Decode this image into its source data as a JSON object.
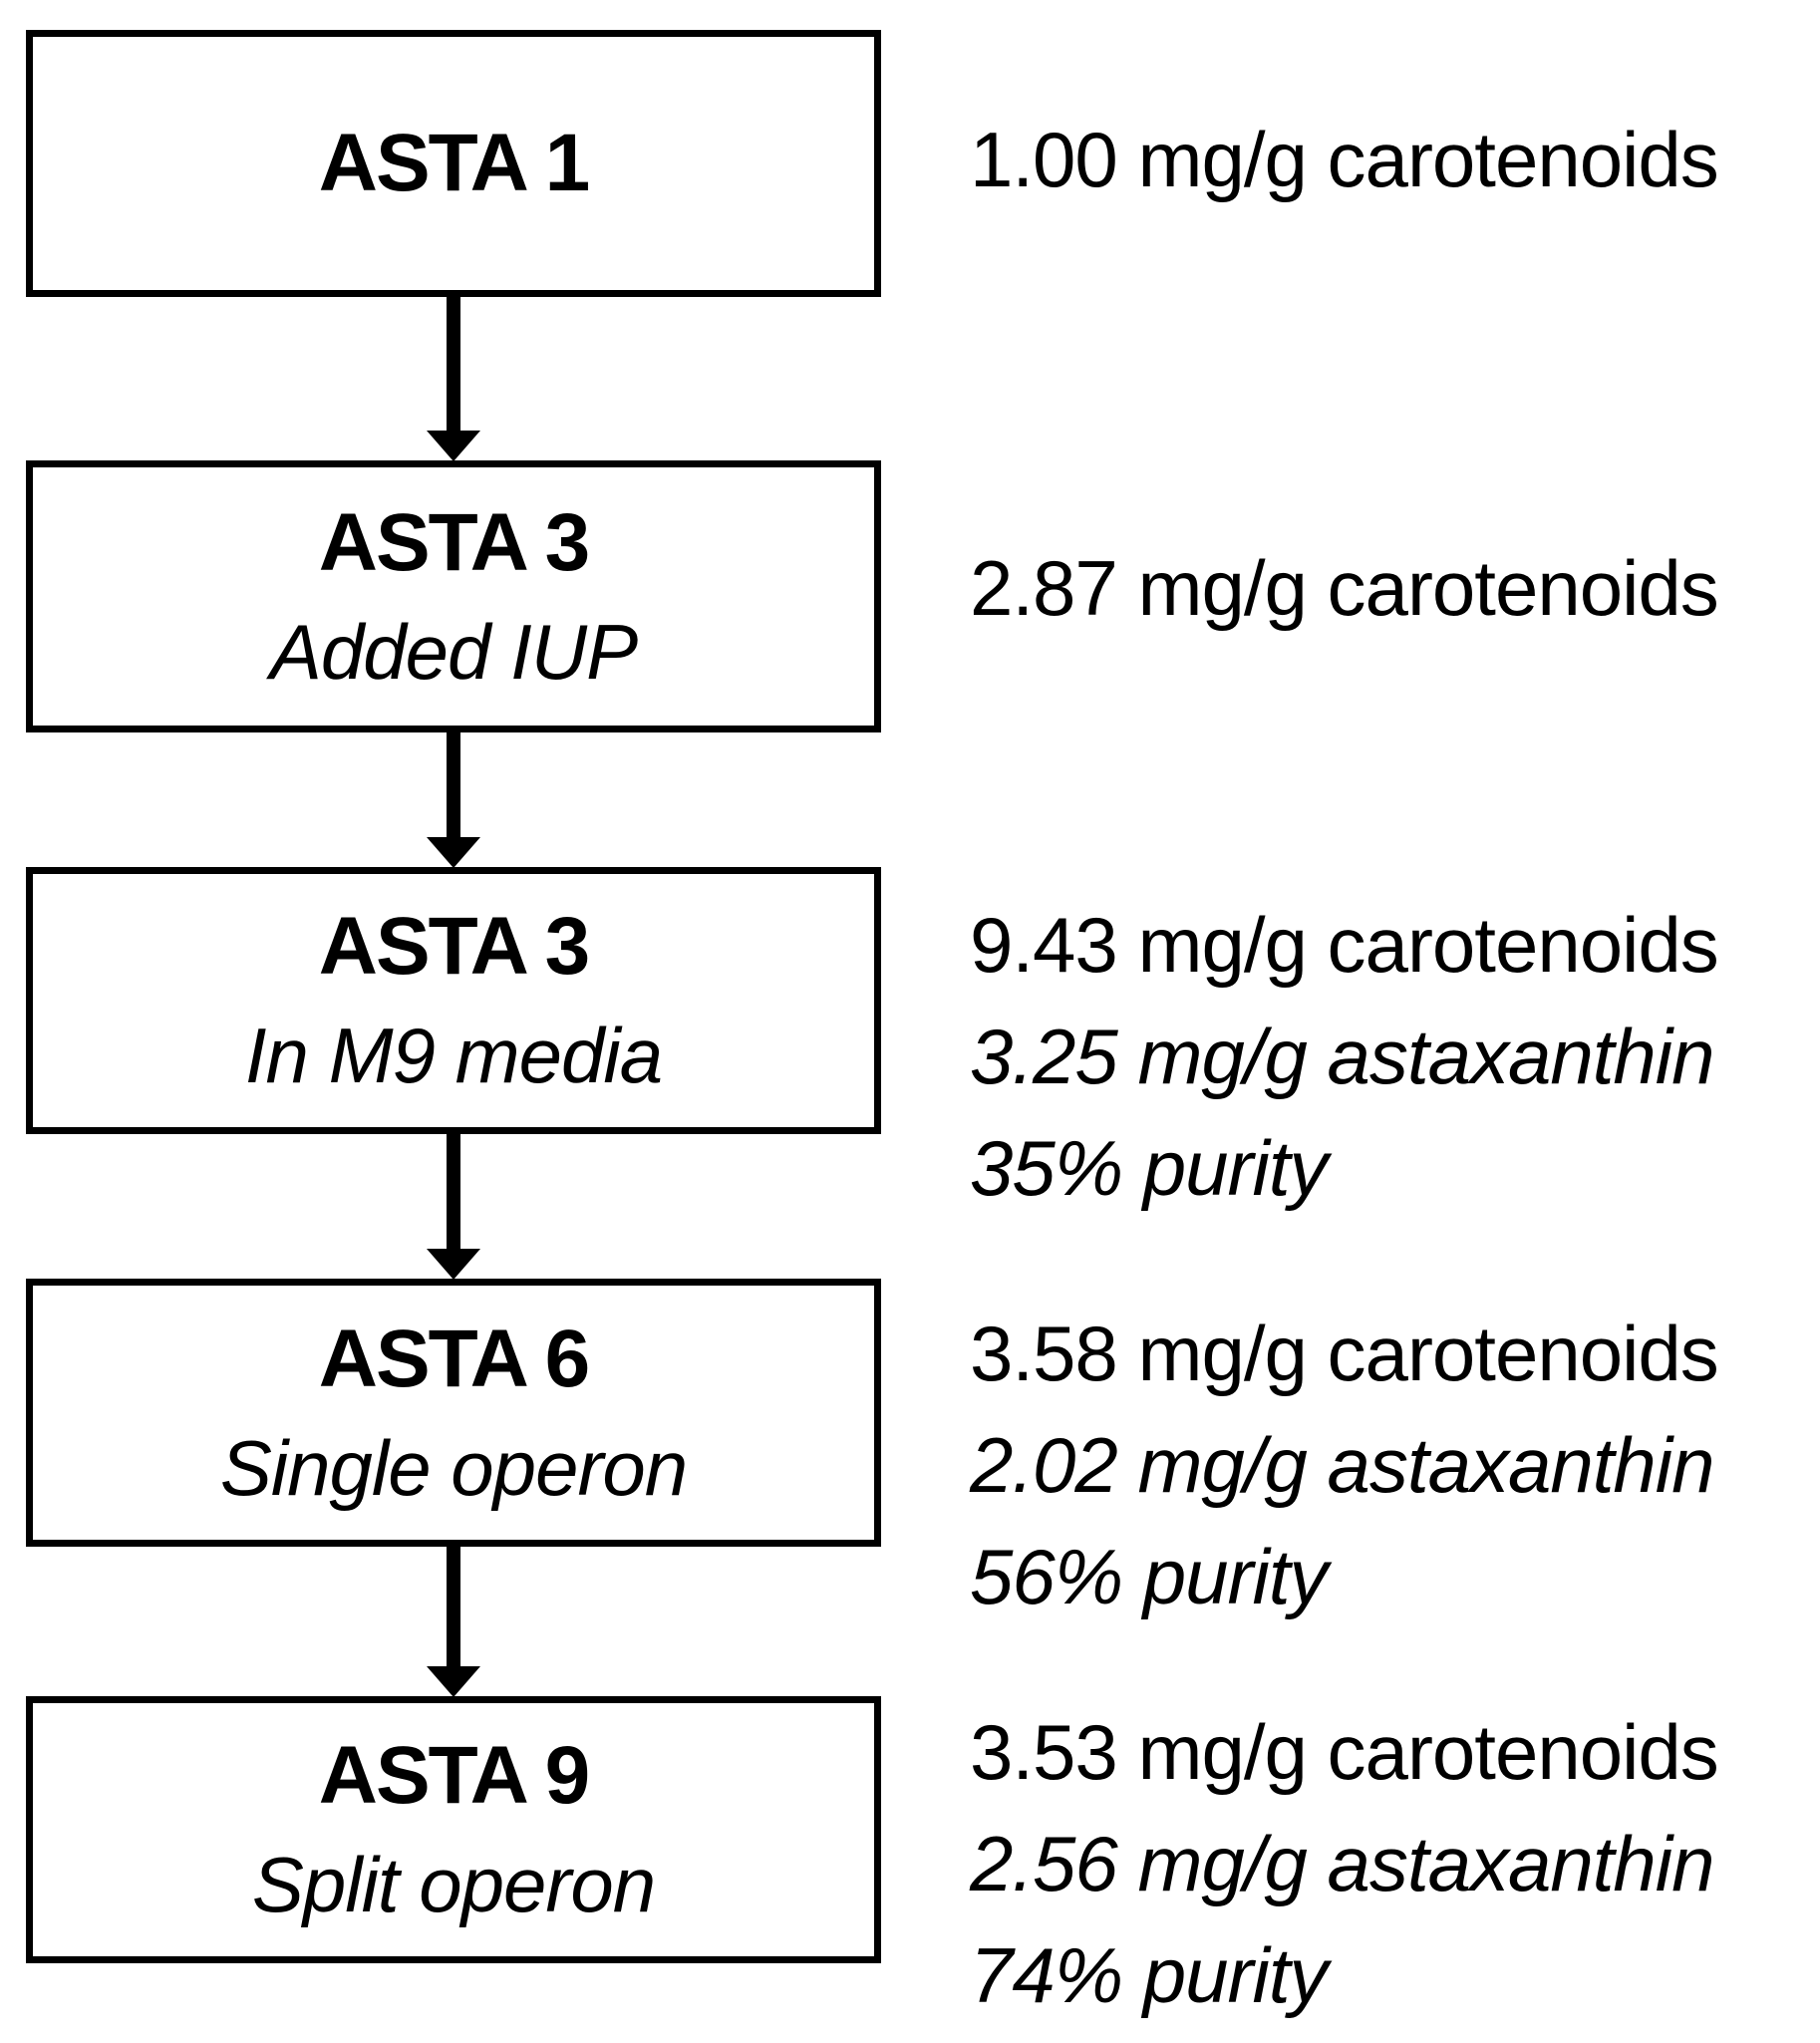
{
  "diagram": {
    "type": "flowchart",
    "direction": "top-down",
    "colors": {
      "background": "#ffffff",
      "box_border": "#000000",
      "text": "#000000",
      "arrow": "#000000"
    },
    "nodes": [
      {
        "title": "ASTA 1",
        "subtitle": "",
        "lines": [
          "1.00 mg/g carotenoids"
        ]
      },
      {
        "title": "ASTA 3",
        "subtitle": "Added IUP",
        "lines": [
          "2.87 mg/g carotenoids"
        ]
      },
      {
        "title": "ASTA 3",
        "subtitle": "In M9 media",
        "lines": [
          "9.43 mg/g carotenoids",
          "3.25 mg/g astaxanthin",
          "35% purity"
        ]
      },
      {
        "title": "ASTA 6",
        "subtitle": "Single operon",
        "lines": [
          "3.58 mg/g carotenoids",
          "2.02 mg/g astaxanthin",
          "56% purity"
        ]
      },
      {
        "title": "ASTA 9",
        "subtitle": "Split operon",
        "lines": [
          "3.53 mg/g carotenoids",
          "2.56 mg/g astaxanthin",
          "74% purity"
        ]
      }
    ]
  }
}
